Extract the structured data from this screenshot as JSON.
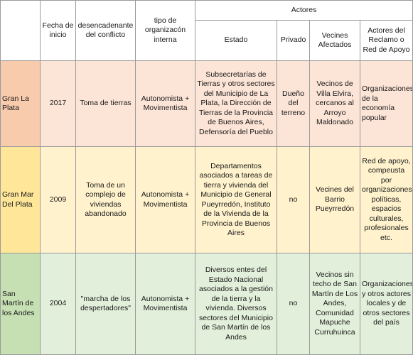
{
  "headers": {
    "fecha": "Fecha de inicio",
    "desencadenante": "desencadenante del conflicto",
    "tipo": "tipo de organizacón interna",
    "actores": "Actores",
    "estado": "Estado",
    "privado": "Privado",
    "vecinos": "Vecines Afectados",
    "reclamo": "Actores del Reclamo o Red de Apoyo"
  },
  "rows": [
    {
      "lugar": "Gran La Plata",
      "fecha": "2017",
      "desencadenante": "Toma de tierras",
      "tipo": "Autonomista + Movimentista",
      "estado": "Subsecretarías de Tierras y otros sectores del Municipio de La Plata, la Dirección de Tierras de la Provincia de Buenos Aires, Defensoría del Pueblo",
      "privado": "Dueño del terreno",
      "vecinos": "Vecinos de Villa Elvira, cercanos al Arroyo Maldonado",
      "reclamo": "Organizaciones de la economía popular"
    },
    {
      "lugar": "Gran Mar Del Plata",
      "fecha": "2009",
      "desencadenante": "Toma de un complejo de viviendas abandonado",
      "tipo": "Autonomista + Movimentista",
      "estado": "Departamentos asociados a tareas de tierra y vivienda del Municipio de General Pueyrredón, Instituto de la Vivienda de la Provincia de Buenos Aires",
      "privado": "no",
      "vecinos": "Vecines del Barrio Pueyrredón",
      "reclamo": "Red de apoyo, compeusta por organizaciones políticas, espacios culturales, profesionales etc."
    },
    {
      "lugar": "San Martín de los Andes",
      "fecha": "2004",
      "desencadenante": "\"marcha de los despertadores\"",
      "tipo": "Autonomista + Movimentista",
      "estado": "Diversos entes del Estado Nacional asociados a la gestión de la tierra y la vivienda. Diversos sectores del Municipio de San Martín de los Andes",
      "privado": "no",
      "vecinos": "Vecinos sin techo de San Martín de Los Andes, Comunidad Mapuche Curruhuinca",
      "reclamo": "Organizaciones y otros actores locales y de otros sectores del país"
    }
  ]
}
